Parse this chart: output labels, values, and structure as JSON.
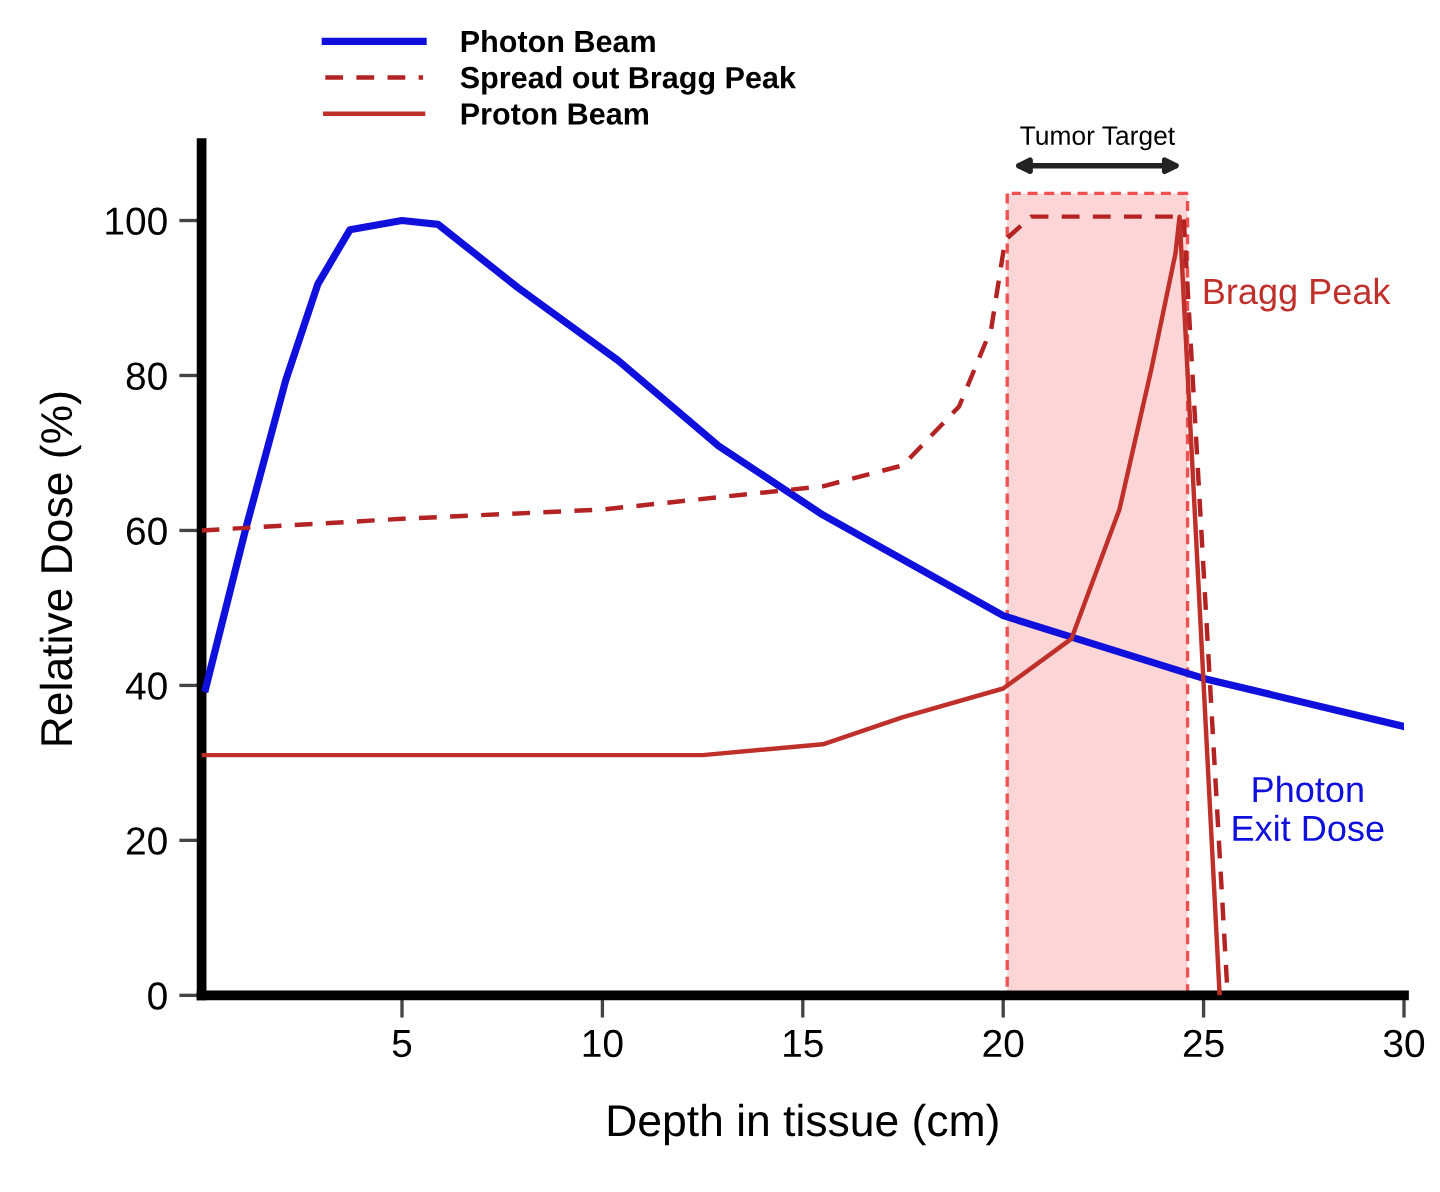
{
  "chart_data": {
    "type": "line",
    "xlabel": "Depth in tissue (cm)",
    "ylabel": "Relative Dose (%)",
    "xlim": [
      0,
      30
    ],
    "ylim": [
      0,
      110
    ],
    "xticks": [
      5,
      10,
      15,
      20,
      25,
      30
    ],
    "yticks": [
      0,
      20,
      40,
      60,
      80,
      100
    ],
    "series": [
      {
        "name": "Photon Beam",
        "color": "#1010dd",
        "line_style": "solid",
        "x": [
          0.1,
          1.1,
          2.1,
          2.9,
          3.7,
          5.0,
          5.9,
          7.9,
          10.4,
          12.9,
          15.5,
          20.0,
          25.0,
          30.0
        ],
        "values": [
          39.6,
          60.2,
          79.4,
          91.8,
          98.8,
          100,
          99.5,
          91.3,
          81.9,
          70.9,
          62,
          49,
          40.9,
          34.7
        ]
      },
      {
        "name": "Spread out Bragg Peak",
        "color": "#b42323",
        "line_style": "dashed",
        "x": [
          0.0,
          5.0,
          10.0,
          15.5,
          17.5,
          18.9,
          19.7,
          20.05,
          20.7,
          24.5,
          25.6
        ],
        "values": [
          60,
          61.5,
          62.7,
          65.7,
          68.4,
          76,
          86,
          97.5,
          100.5,
          100.5,
          0
        ]
      },
      {
        "name": "Proton Beam",
        "color": "#c0302a",
        "line_style": "solid",
        "x": [
          0.0,
          12.5,
          15.5,
          17.5,
          20.0,
          21.7,
          22.9,
          23.7,
          24.3,
          24.4,
          25.4
        ],
        "values": [
          31,
          31,
          32.4,
          35.9,
          39.6,
          46,
          62.7,
          80.9,
          95.8,
          100.5,
          0
        ]
      }
    ],
    "bands": [
      {
        "axis": "x",
        "from": 20.1,
        "to": 24.6,
        "label": "Tumor Target",
        "color": "#fcd6d6"
      }
    ],
    "annotations": [
      {
        "text": "Bragg Peak",
        "x": 24.4,
        "y": 100.5
      },
      "Photon\nExit Dose"
    ],
    "legend": "top",
    "grid": false
  }
}
